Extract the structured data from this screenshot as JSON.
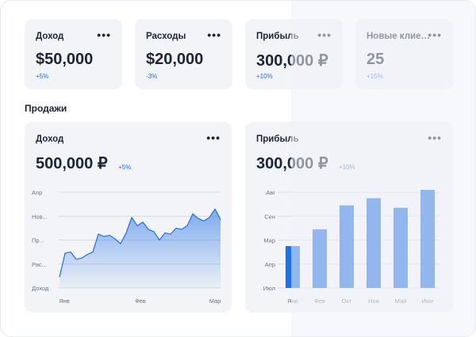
{
  "stats": [
    {
      "title": "Доход",
      "value": "$50,000",
      "delta": "+5%"
    },
    {
      "title": "Расходы",
      "value": "$20,000",
      "delta": "-3%"
    },
    {
      "title": "Прибыль",
      "value": "300,000 ₽",
      "delta": "+10%"
    },
    {
      "title": "Новые клиен...",
      "value": "25",
      "delta": "+15%"
    }
  ],
  "menu_glyph": "•••",
  "section_title": "Продажи",
  "income_card": {
    "title": "Доход",
    "value": "500,000 ₽",
    "delta": "+5%"
  },
  "profit_card": {
    "title": "Прибыль",
    "value": "300,000 ₽",
    "delta": "+10%"
  },
  "accent": "#1f6fe5",
  "chart_data": [
    {
      "type": "area",
      "y_tick_labels": [
        "Апр",
        "Нов...",
        "Пр...",
        "Рас...",
        "Доход"
      ],
      "x_tick_labels": [
        "Янв",
        "Фев",
        "Мар"
      ],
      "ylim": [
        0,
        4
      ],
      "grid": true,
      "series": [
        {
          "values": [
            0.45,
            1.45,
            1.5,
            1.2,
            1.25,
            1.4,
            1.5,
            2.25,
            2.15,
            2.2,
            2.05,
            1.85,
            2.3,
            2.95,
            2.6,
            2.75,
            2.45,
            2.35,
            2.0,
            2.3,
            2.25,
            2.5,
            2.45,
            2.6,
            3.1,
            2.9,
            2.8,
            2.95,
            3.3,
            2.85
          ]
        }
      ]
    },
    {
      "type": "bar",
      "y_tick_labels": [
        "Авг",
        "Сен",
        "Мар",
        "Апр",
        "Июл"
      ],
      "categories": [
        "Янв",
        "Фев",
        "Окт",
        "Ноя",
        "Май",
        "Июн"
      ],
      "ylim": [
        0,
        4
      ],
      "values": [
        1.75,
        2.45,
        3.45,
        3.75,
        3.35,
        4.1
      ],
      "grid": true
    }
  ]
}
